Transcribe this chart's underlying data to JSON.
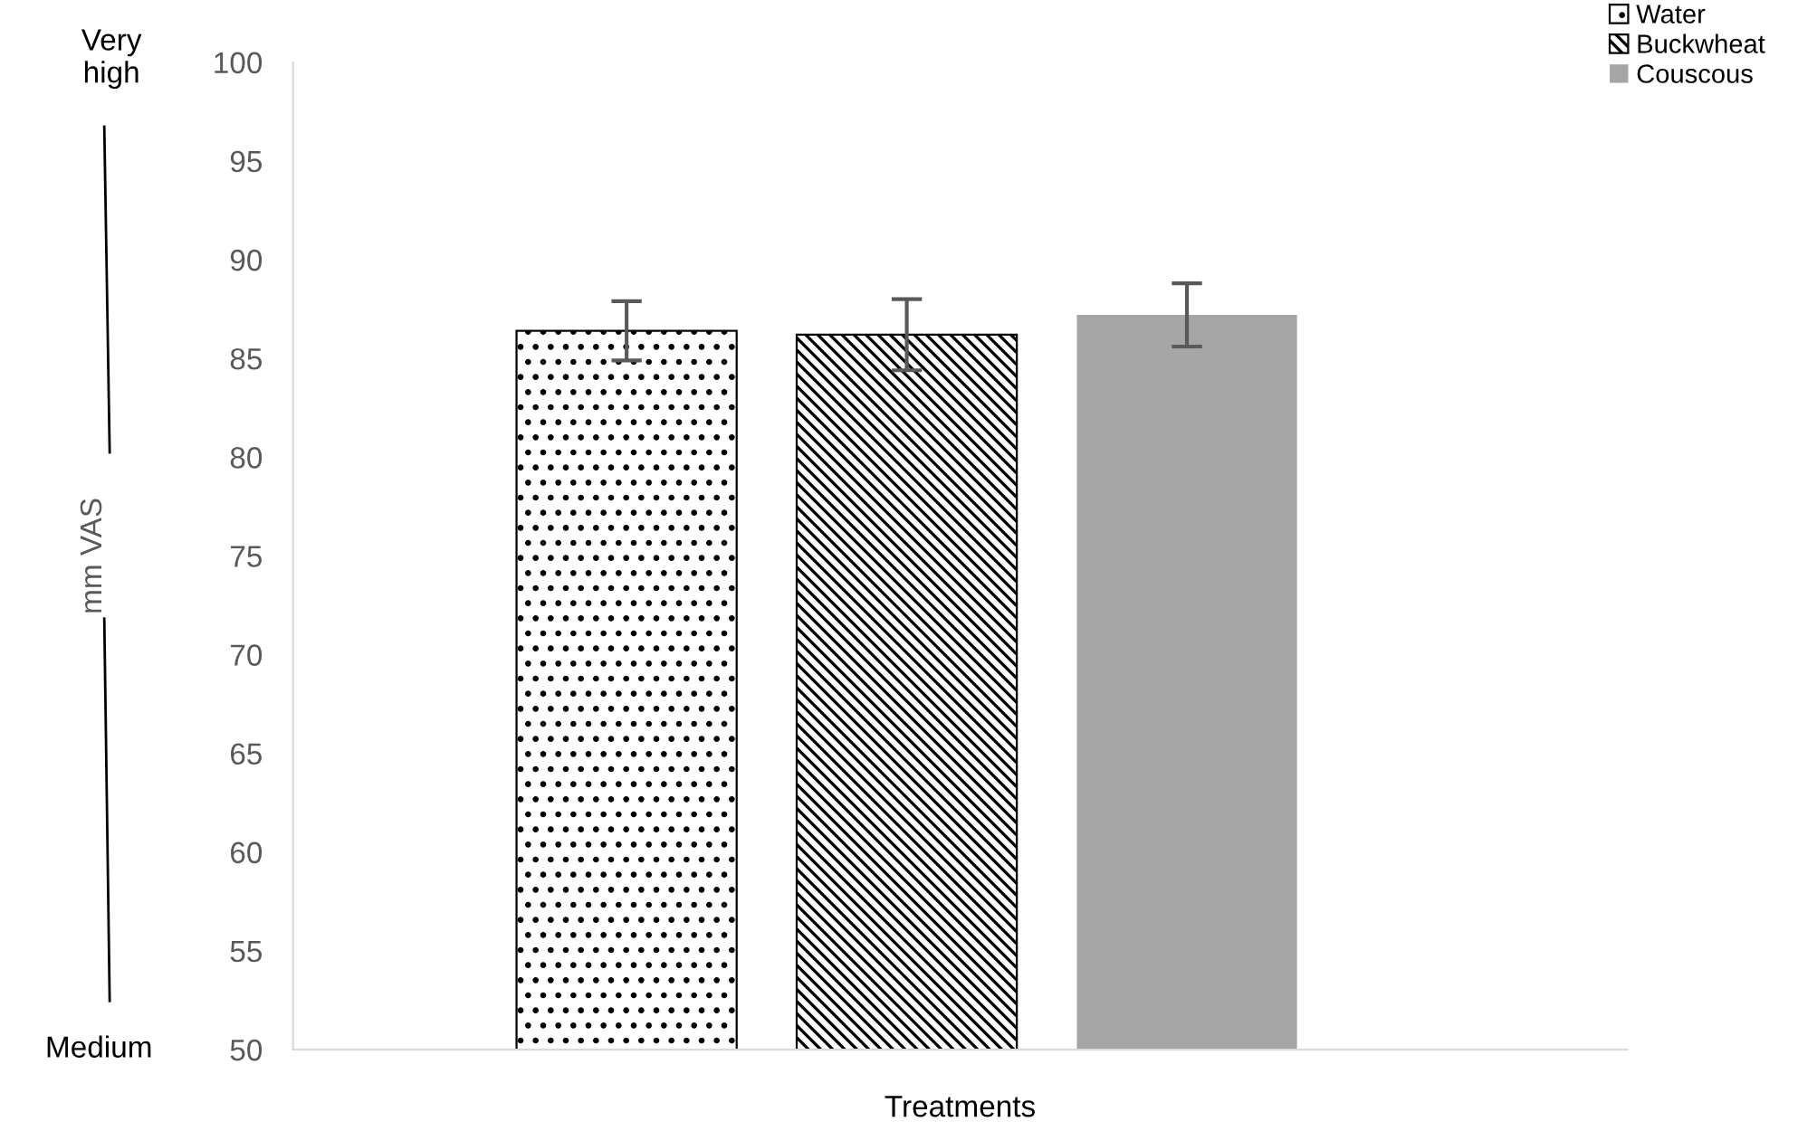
{
  "chart_data": {
    "type": "bar",
    "xlabel": "Treatments",
    "ylabel": "mm VAS",
    "categories": [
      null
    ],
    "series": [
      {
        "name": "Water",
        "color": "#000000",
        "values": [
          86.4
        ],
        "errors": [
          1.5
        ]
      },
      {
        "name": "Buckwheat",
        "color": "#000000",
        "values": [
          86.2
        ],
        "errors": [
          1.8
        ]
      },
      {
        "name": "Couscous",
        "color": "#a5a5a5",
        "values": [
          87.2
        ],
        "errors": [
          1.6
        ]
      }
    ],
    "ylim": [
      50,
      100
    ],
    "yticks": [
      50,
      55,
      60,
      65,
      70,
      75,
      80,
      85,
      90,
      95,
      100
    ],
    "grid": false,
    "legend": "top right",
    "annotations": [
      "Very high",
      "Medium"
    ]
  }
}
